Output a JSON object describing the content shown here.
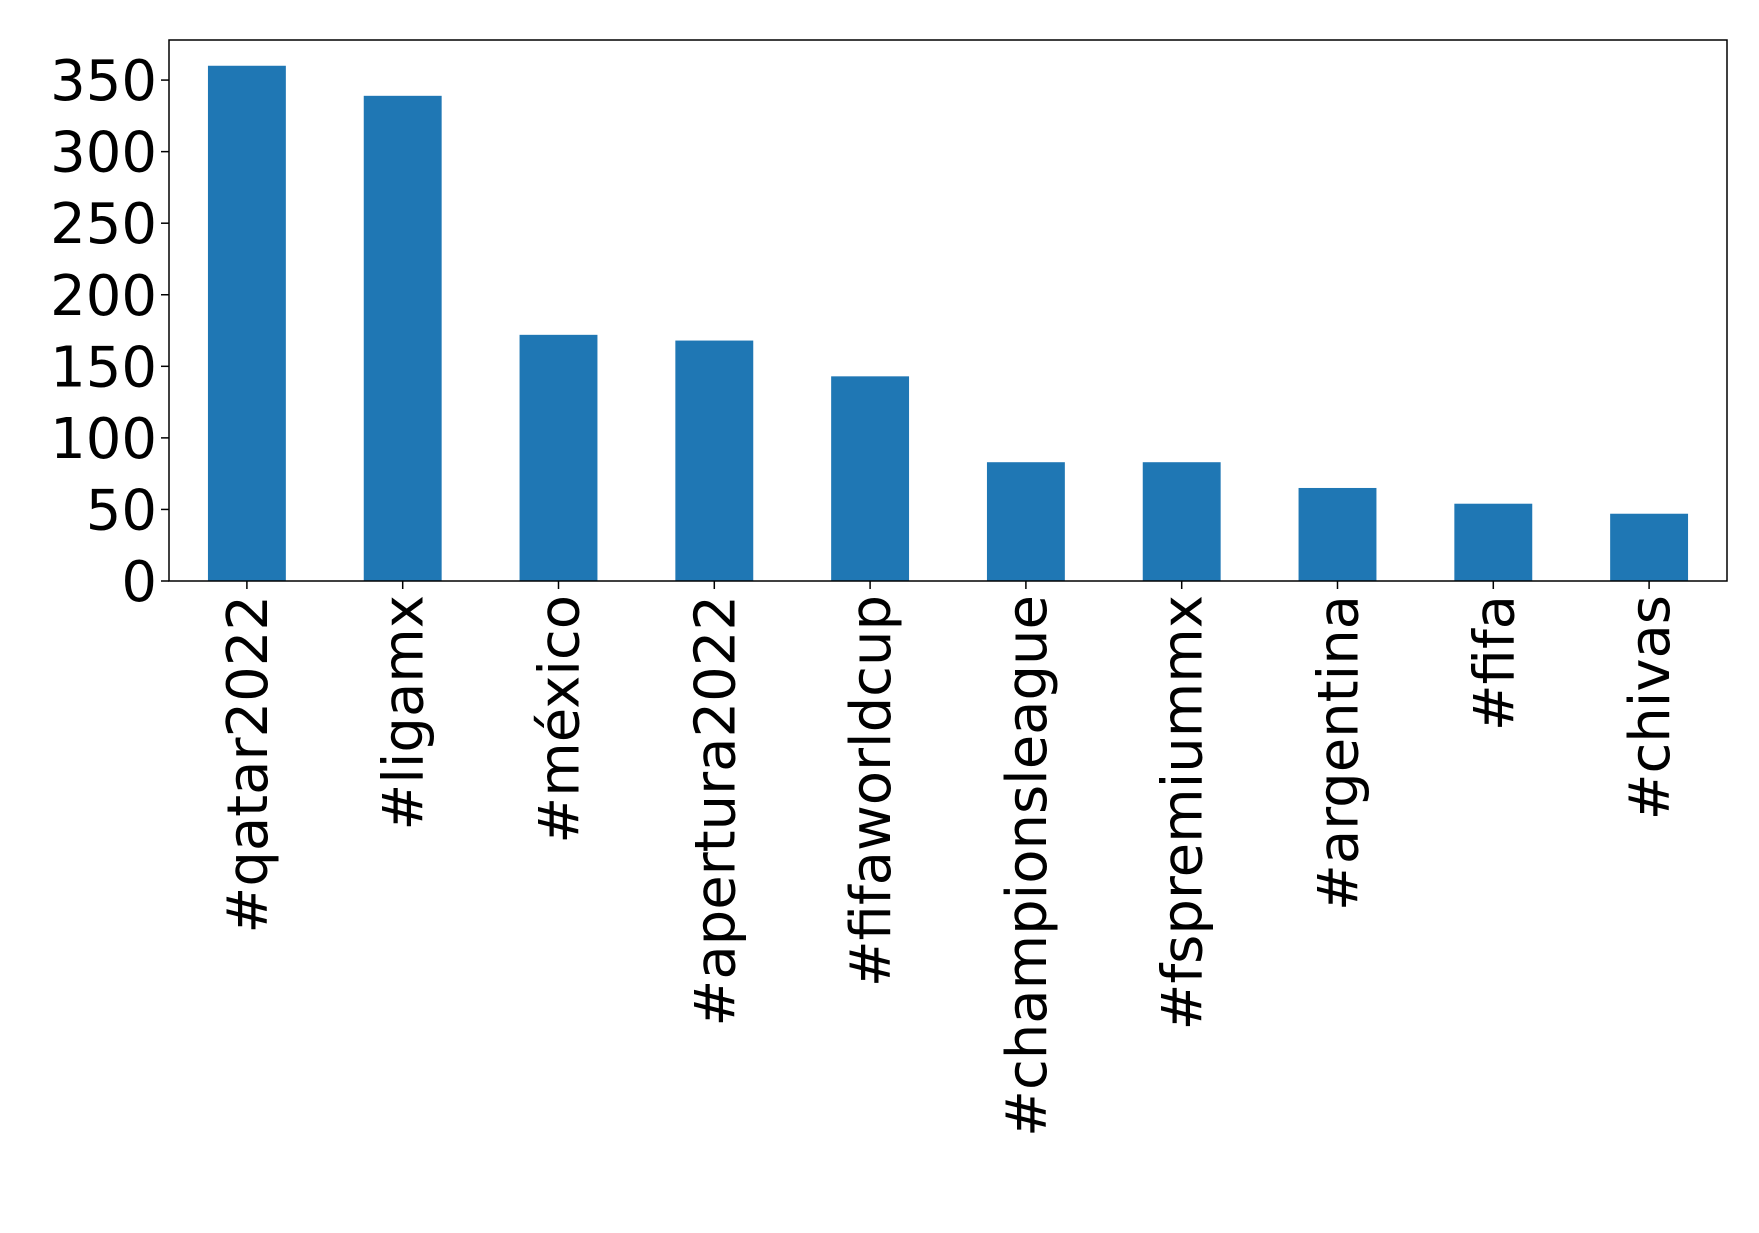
{
  "chart_data": {
    "type": "bar",
    "categories": [
      "#qatar2022",
      "#ligamx",
      "#méxico",
      "#apertura2022",
      "#fifaworldcup",
      "#championsleague",
      "#fspremiummx",
      "#argentina",
      "#fifa",
      "#chivas"
    ],
    "values": [
      360,
      339,
      172,
      168,
      143,
      83,
      83,
      65,
      54,
      47
    ],
    "color": "#1f77b4",
    "ylim": [
      0,
      378
    ],
    "yticks": [
      0,
      50,
      100,
      150,
      200,
      250,
      300,
      350
    ],
    "grid": false
  }
}
